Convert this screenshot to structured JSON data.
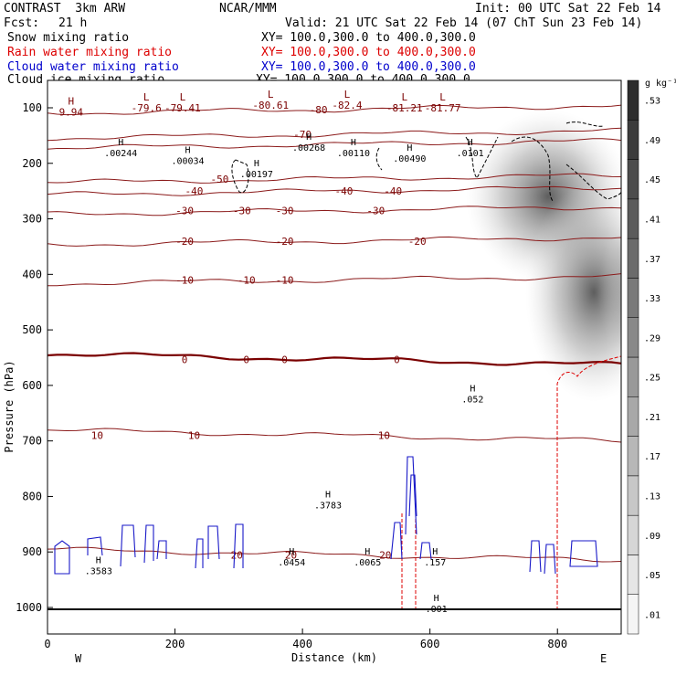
{
  "header": {
    "model": "CONTRAST  3km ARW",
    "org": "NCAR/MMM",
    "init": "Init: 00 UTC Sat 22 Feb 14",
    "fcst_label": "Fcst:",
    "fcst_value": "21 h",
    "valid": "Valid: 21 UTC Sat 22 Feb 14 (07 ChT Sun 23 Feb 14)",
    "fields": [
      {
        "name": "Snow mixing ratio",
        "color": "#000000",
        "xy": "XY= 100.0,300.0 to 400.0,300.0"
      },
      {
        "name": "Rain water mixing ratio",
        "color": "#dd0000",
        "xy": "XY= 100.0,300.0 to 400.0,300.0"
      },
      {
        "name": "Cloud water mixing ratio",
        "color": "#0000cc",
        "xy": "XY= 100.0,300.0 to 400.0,300.0"
      },
      {
        "name": "Cloud ice mixing ratio",
        "color": "#000000",
        "xy": "XY= 100.0,300.0 to 400.0,300.0"
      }
    ]
  },
  "chart_data": {
    "type": "contour-cross-section",
    "xlabel": "Distance (km)",
    "ylabel": "Pressure (hPa)",
    "xlim": [
      0,
      900
    ],
    "ylim": [
      1000,
      60
    ],
    "x_ticks": [
      0,
      200,
      400,
      600,
      800
    ],
    "y_ticks": [
      100,
      200,
      300,
      400,
      500,
      600,
      700,
      800,
      900,
      1000
    ],
    "left_end_label": "W",
    "right_end_label": "E",
    "colorbar": {
      "unit": "g kg⁻¹",
      "labels": [
        ".01",
        ".05",
        ".09",
        ".13",
        ".17",
        ".21",
        ".25",
        ".29",
        ".33",
        ".37",
        ".41",
        ".45",
        ".49",
        ".53"
      ]
    },
    "temperature_contours": [
      {
        "level": -80,
        "p": 103,
        "label_x": [
          425
        ]
      },
      {
        "level": -70,
        "p": 148,
        "label_x": [
          400
        ]
      },
      {
        "level": -60,
        "p": 166,
        "label_x": []
      },
      {
        "level": -50,
        "p": 228,
        "label_x": [
          270
        ]
      },
      {
        "level": -40,
        "p": 250,
        "label_x": [
          230,
          465,
          542
        ]
      },
      {
        "level": -30,
        "p": 285,
        "label_x": [
          215,
          305,
          372,
          515
        ]
      },
      {
        "level": -20,
        "p": 340,
        "label_x": [
          215,
          372,
          580
        ]
      },
      {
        "level": -10,
        "p": 410,
        "label_x": [
          215,
          312,
          372
        ]
      },
      {
        "level": 0,
        "p": 553,
        "label_x": [
          215,
          312,
          372,
          548
        ]
      },
      {
        "level": 10,
        "p": 690,
        "label_x": [
          78,
          230,
          528
        ]
      },
      {
        "level": 20,
        "p": 905,
        "label_x": [
          297,
          382,
          530
        ]
      }
    ],
    "temperature_minima": [
      {
        "value": "-79.6",
        "x": 155,
        "p": 103
      },
      {
        "value": "-79.41",
        "x": 212,
        "p": 103
      },
      {
        "value": "-80.61",
        "x": 350,
        "p": 98
      },
      {
        "value": "-82.4",
        "x": 470,
        "p": 98
      },
      {
        "value": "-81.21",
        "x": 560,
        "p": 103
      },
      {
        "value": "-81.77",
        "x": 620,
        "p": 103
      },
      {
        "value": "9.94",
        "x": 37,
        "p": 111
      }
    ],
    "maxima": [
      {
        "value": ".00244",
        "x": 115,
        "p": 184
      },
      {
        "value": ".00034",
        "x": 220,
        "p": 198
      },
      {
        "value": ".00197",
        "x": 328,
        "p": 222
      },
      {
        "value": ".00268",
        "x": 410,
        "p": 174
      },
      {
        "value": ".00110",
        "x": 480,
        "p": 184
      },
      {
        "value": ".00490",
        "x": 568,
        "p": 194
      },
      {
        "value": ".0101",
        "x": 663,
        "p": 184
      },
      {
        "value": ".052",
        "x": 667,
        "p": 627
      },
      {
        "value": ".3783",
        "x": 440,
        "p": 818
      },
      {
        "value": ".3583",
        "x": 80,
        "p": 937
      },
      {
        "value": ".0065",
        "x": 502,
        "p": 921
      },
      {
        "value": ".0454",
        "x": 383,
        "p": 921
      },
      {
        "value": ".157",
        "x": 608,
        "p": 921
      },
      {
        "value": ".001",
        "x": 610,
        "p": 1005
      }
    ]
  }
}
